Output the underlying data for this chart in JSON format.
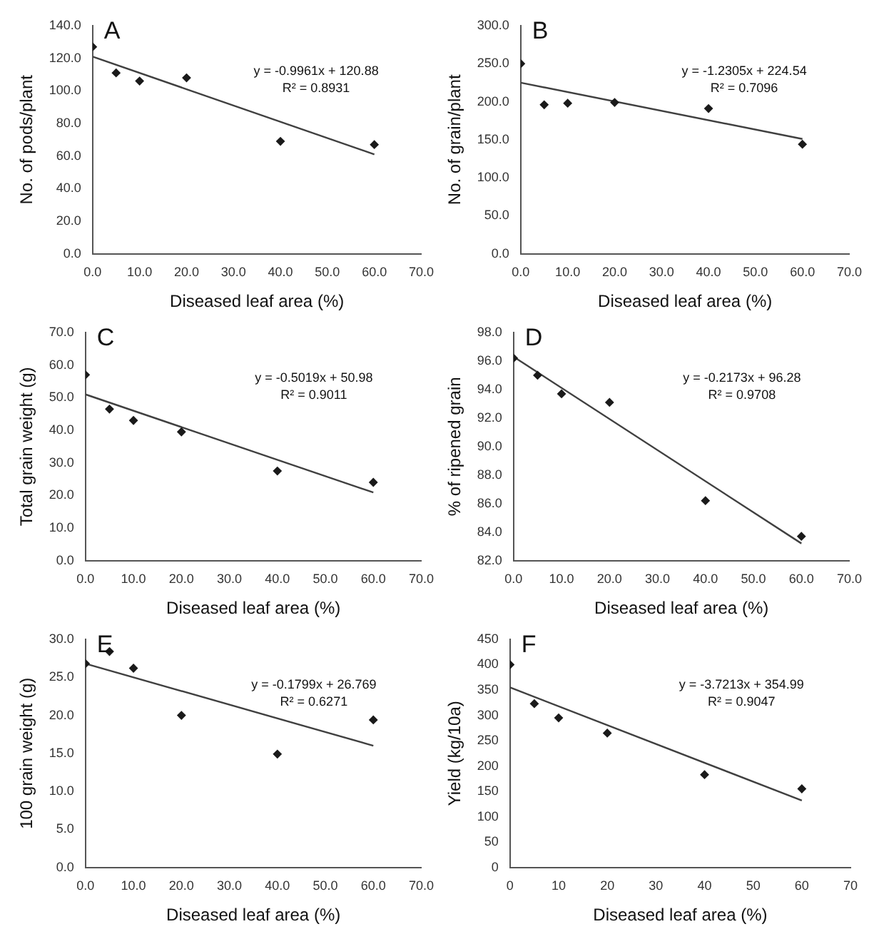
{
  "chart_data": [
    {
      "type": "scatter",
      "title": "A",
      "xlabel": "Diseased leaf area (%)",
      "ylabel": "No. of pods/plant",
      "marker": "diamond",
      "grid": false,
      "legend": false,
      "xlim": [
        0,
        70
      ],
      "xticks": [
        {
          "value": 0,
          "label": "0.0"
        },
        {
          "value": 10,
          "label": "10.0"
        },
        {
          "value": 20,
          "label": "20.0"
        },
        {
          "value": 30,
          "label": "30.0"
        },
        {
          "value": 40,
          "label": "40.0"
        },
        {
          "value": 50,
          "label": "50.0"
        },
        {
          "value": 60,
          "label": "60.0"
        },
        {
          "value": 70,
          "label": "70.0"
        }
      ],
      "ylim": [
        0,
        140
      ],
      "yticks": [
        {
          "value": 0,
          "label": "0.0"
        },
        {
          "value": 20,
          "label": "20.0"
        },
        {
          "value": 40,
          "label": "40.0"
        },
        {
          "value": 60,
          "label": "60.0"
        },
        {
          "value": 80,
          "label": "80.0"
        },
        {
          "value": 100,
          "label": "100.0"
        },
        {
          "value": 120,
          "label": "120.0"
        },
        {
          "value": 140,
          "label": "140.0"
        }
      ],
      "annotations": [
        "y = -0.9961x + 120.88",
        "R² = 0.8931"
      ],
      "series": [
        {
          "type": "scatter",
          "color": "#1a1a1a",
          "x": [
            0,
            5,
            10,
            20,
            40,
            60
          ],
          "values": [
            127,
            111,
            106,
            108,
            69,
            67
          ]
        },
        {
          "type": "line",
          "color": "#404040",
          "marker": "none",
          "x": [
            0,
            60
          ],
          "values": [
            121,
            61
          ]
        }
      ]
    },
    {
      "type": "scatter",
      "title": "B",
      "xlabel": "Diseased leaf area (%)",
      "ylabel": "No. of grain/plant",
      "marker": "diamond",
      "grid": false,
      "legend": false,
      "xlim": [
        0,
        70
      ],
      "xticks": [
        {
          "value": 0,
          "label": "0.0"
        },
        {
          "value": 10,
          "label": "10.0"
        },
        {
          "value": 20,
          "label": "20.0"
        },
        {
          "value": 30,
          "label": "30.0"
        },
        {
          "value": 40,
          "label": "40.0"
        },
        {
          "value": 50,
          "label": "50.0"
        },
        {
          "value": 60,
          "label": "60.0"
        },
        {
          "value": 70,
          "label": "70.0"
        }
      ],
      "ylim": [
        0,
        300
      ],
      "yticks": [
        {
          "value": 0,
          "label": "0.0"
        },
        {
          "value": 50,
          "label": "50.0"
        },
        {
          "value": 100,
          "label": "100.0"
        },
        {
          "value": 150,
          "label": "150.0"
        },
        {
          "value": 200,
          "label": "200.0"
        },
        {
          "value": 250,
          "label": "250.0"
        },
        {
          "value": 300,
          "label": "300.0"
        }
      ],
      "annotations": [
        "y = -1.2305x + 224.54",
        "R² = 0.7096"
      ],
      "series": [
        {
          "type": "scatter",
          "color": "#1a1a1a",
          "x": [
            0,
            5,
            10,
            20,
            40,
            60
          ],
          "values": [
            250,
            196,
            198,
            199,
            191,
            144
          ]
        },
        {
          "type": "line",
          "color": "#404040",
          "marker": "none",
          "x": [
            0,
            60
          ],
          "values": [
            225,
            151
          ]
        }
      ]
    },
    {
      "type": "scatter",
      "title": "C",
      "xlabel": "Diseased leaf area (%)",
      "ylabel": "Total grain weight (g)",
      "marker": "diamond",
      "grid": false,
      "legend": false,
      "xlim": [
        0,
        70
      ],
      "xticks": [
        {
          "value": 0,
          "label": "0.0"
        },
        {
          "value": 10,
          "label": "10.0"
        },
        {
          "value": 20,
          "label": "20.0"
        },
        {
          "value": 30,
          "label": "30.0"
        },
        {
          "value": 40,
          "label": "40.0"
        },
        {
          "value": 50,
          "label": "50.0"
        },
        {
          "value": 60,
          "label": "60.0"
        },
        {
          "value": 70,
          "label": "70.0"
        }
      ],
      "ylim": [
        0,
        70
      ],
      "yticks": [
        {
          "value": 0,
          "label": "0.0"
        },
        {
          "value": 10,
          "label": "10.0"
        },
        {
          "value": 20,
          "label": "20.0"
        },
        {
          "value": 30,
          "label": "30.0"
        },
        {
          "value": 40,
          "label": "40.0"
        },
        {
          "value": 50,
          "label": "50.0"
        },
        {
          "value": 60,
          "label": "60.0"
        },
        {
          "value": 70,
          "label": "70.0"
        }
      ],
      "annotations": [
        "y = -0.5019x + 50.98",
        "R² = 0.9011"
      ],
      "series": [
        {
          "type": "scatter",
          "color": "#1a1a1a",
          "x": [
            0,
            5,
            10,
            20,
            40,
            60
          ],
          "values": [
            57,
            46.5,
            43,
            39.5,
            27.5,
            24
          ]
        },
        {
          "type": "line",
          "color": "#404040",
          "marker": "none",
          "x": [
            0,
            60
          ],
          "values": [
            51.0,
            20.9
          ]
        }
      ]
    },
    {
      "type": "scatter",
      "title": "D",
      "xlabel": "Diseased leaf area (%)",
      "ylabel": "% of ripened grain",
      "marker": "diamond",
      "grid": false,
      "legend": false,
      "xlim": [
        0,
        70
      ],
      "xticks": [
        {
          "value": 0,
          "label": "0.0"
        },
        {
          "value": 10,
          "label": "10.0"
        },
        {
          "value": 20,
          "label": "20.0"
        },
        {
          "value": 30,
          "label": "30.0"
        },
        {
          "value": 40,
          "label": "40.0"
        },
        {
          "value": 50,
          "label": "50.0"
        },
        {
          "value": 60,
          "label": "60.0"
        },
        {
          "value": 70,
          "label": "70.0"
        }
      ],
      "ylim": [
        82,
        98
      ],
      "yticks": [
        {
          "value": 82,
          "label": "82.0"
        },
        {
          "value": 84,
          "label": "84.0"
        },
        {
          "value": 86,
          "label": "86.0"
        },
        {
          "value": 88,
          "label": "88.0"
        },
        {
          "value": 90,
          "label": "90.0"
        },
        {
          "value": 92,
          "label": "92.0"
        },
        {
          "value": 94,
          "label": "94.0"
        },
        {
          "value": 96,
          "label": "96.0"
        },
        {
          "value": 98,
          "label": "98.0"
        }
      ],
      "annotations": [
        "y = -0.2173x + 96.28",
        "R² = 0.9708"
      ],
      "series": [
        {
          "type": "scatter",
          "color": "#1a1a1a",
          "x": [
            0,
            5,
            10,
            20,
            40,
            60
          ],
          "values": [
            96.2,
            95.0,
            93.7,
            93.1,
            86.2,
            83.7
          ]
        },
        {
          "type": "line",
          "color": "#404040",
          "marker": "none",
          "x": [
            0,
            60
          ],
          "values": [
            96.3,
            83.2
          ]
        }
      ]
    },
    {
      "type": "scatter",
      "title": "E",
      "xlabel": "Diseased leaf area (%)",
      "ylabel": "100 grain weight (g)",
      "marker": "diamond",
      "grid": false,
      "legend": false,
      "xlim": [
        0,
        70
      ],
      "xticks": [
        {
          "value": 0,
          "label": "0.0"
        },
        {
          "value": 10,
          "label": "10.0"
        },
        {
          "value": 20,
          "label": "20.0"
        },
        {
          "value": 30,
          "label": "30.0"
        },
        {
          "value": 40,
          "label": "40.0"
        },
        {
          "value": 50,
          "label": "50.0"
        },
        {
          "value": 60,
          "label": "60.0"
        },
        {
          "value": 70,
          "label": "70.0"
        }
      ],
      "ylim": [
        0,
        30
      ],
      "yticks": [
        {
          "value": 0,
          "label": "0.0"
        },
        {
          "value": 5,
          "label": "5.0"
        },
        {
          "value": 10,
          "label": "10.0"
        },
        {
          "value": 15,
          "label": "15.0"
        },
        {
          "value": 20,
          "label": "20.0"
        },
        {
          "value": 25,
          "label": "25.0"
        },
        {
          "value": 30,
          "label": "30.0"
        }
      ],
      "annotations": [
        "y = -0.1799x + 26.769",
        "R² = 0.6271"
      ],
      "series": [
        {
          "type": "scatter",
          "color": "#1a1a1a",
          "x": [
            0,
            5,
            10,
            20,
            40,
            60
          ],
          "values": [
            26.8,
            28.4,
            26.2,
            20.0,
            14.9,
            19.4
          ]
        },
        {
          "type": "line",
          "color": "#404040",
          "marker": "none",
          "x": [
            0,
            60
          ],
          "values": [
            26.8,
            16.0
          ]
        }
      ]
    },
    {
      "type": "scatter",
      "title": "F",
      "xlabel": "Diseased leaf area (%)",
      "ylabel": "Yield (kg/10a)",
      "marker": "diamond",
      "grid": false,
      "legend": false,
      "xlim": [
        0,
        70
      ],
      "xticks": [
        0,
        10,
        20,
        30,
        40,
        50,
        60,
        70
      ],
      "ylim": [
        0,
        450
      ],
      "yticks": [
        0,
        50,
        100,
        150,
        200,
        250,
        300,
        350,
        400,
        450
      ],
      "annotations": [
        "y = -3.7213x + 354.99",
        "R² = 0.9047"
      ],
      "series": [
        {
          "type": "scatter",
          "color": "#1a1a1a",
          "x": [
            0,
            5,
            10,
            20,
            40,
            60
          ],
          "values": [
            400,
            323,
            295,
            265,
            183,
            155
          ]
        },
        {
          "type": "line",
          "color": "#404040",
          "marker": "none",
          "x": [
            0,
            60
          ],
          "values": [
            355,
            132
          ]
        }
      ]
    }
  ]
}
